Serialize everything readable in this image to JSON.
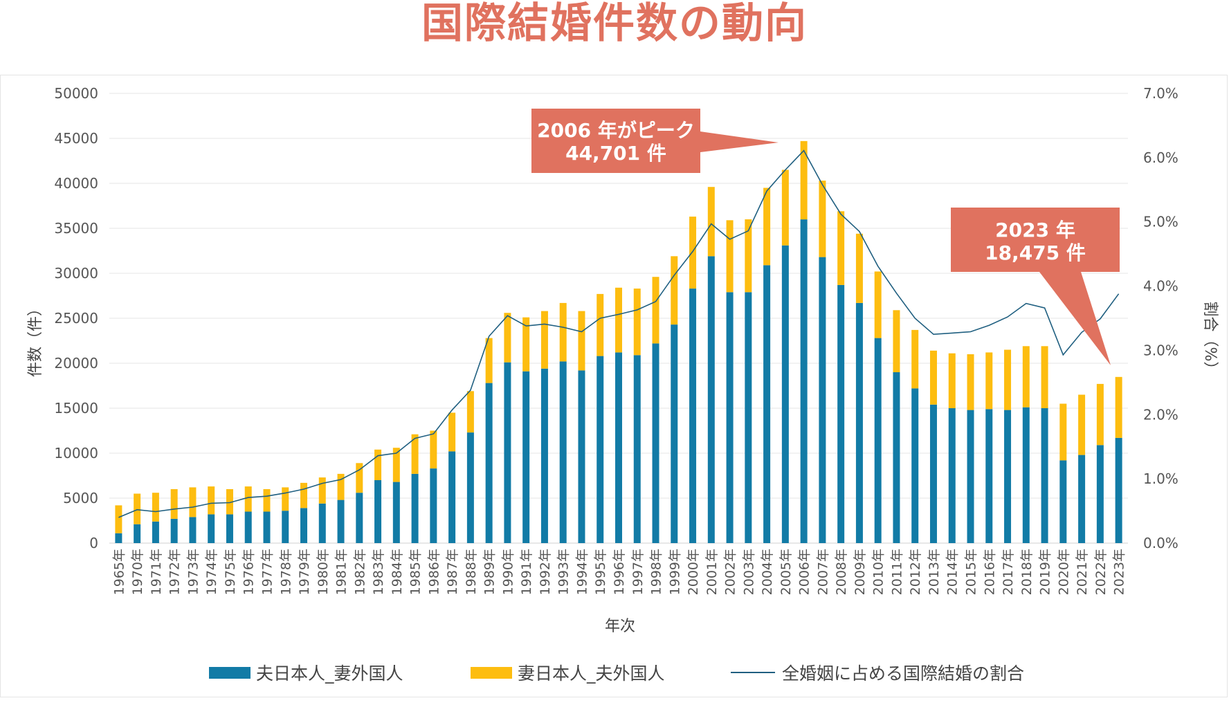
{
  "title": "国際結婚件数の動向",
  "chart_data": {
    "type": "bar",
    "stacked": true,
    "categories": [
      "1965年",
      "1970年",
      "1971年",
      "1972年",
      "1973年",
      "1974年",
      "1975年",
      "1976年",
      "1977年",
      "1978年",
      "1979年",
      "1980年",
      "1981年",
      "1982年",
      "1983年",
      "1984年",
      "1985年",
      "1986年",
      "1987年",
      "1988年",
      "1989年",
      "1990年",
      "1991年",
      "1992年",
      "1993年",
      "1994年",
      "1995年",
      "1996年",
      "1997年",
      "1998年",
      "1999年",
      "2000年",
      "2001年",
      "2002年",
      "2003年",
      "2004年",
      "2005年",
      "2006年",
      "2007年",
      "2008年",
      "2009年",
      "2010年",
      "2011年",
      "2012年",
      "2013年",
      "2014年",
      "2015年",
      "2016年",
      "2017年",
      "2018年",
      "2019年",
      "2020年",
      "2021年",
      "2022年",
      "2023年"
    ],
    "series": [
      {
        "name": "夫日本人_妻外国人",
        "type": "bar",
        "axis": "left",
        "color": "#127ba6",
        "values": [
          1100,
          2100,
          2400,
          2700,
          2900,
          3200,
          3200,
          3500,
          3500,
          3600,
          3900,
          4400,
          4800,
          5600,
          7000,
          6800,
          7700,
          8300,
          10200,
          12300,
          17800,
          20100,
          19100,
          19400,
          20200,
          19200,
          20800,
          21200,
          20900,
          22200,
          24300,
          28300,
          31900,
          27900,
          27900,
          30900,
          33100,
          35993,
          31800,
          28700,
          26700,
          22800,
          19000,
          17200,
          15400,
          15000,
          14800,
          14900,
          14800,
          15100,
          15000,
          9200,
          9800,
          10900,
          11700
        ]
      },
      {
        "name": "妻日本人_夫外国人",
        "type": "bar",
        "axis": "left",
        "color": "#fdbd10",
        "values": [
          3100,
          3400,
          3200,
          3300,
          3300,
          3100,
          2800,
          2800,
          2500,
          2600,
          2800,
          2900,
          2900,
          3300,
          3400,
          3800,
          4400,
          4200,
          4300,
          4600,
          5000,
          5500,
          6000,
          6400,
          6500,
          6600,
          6900,
          7200,
          7400,
          7400,
          7600,
          8000,
          7700,
          8000,
          8100,
          8600,
          8400,
          8708,
          8500,
          8200,
          7700,
          7400,
          6900,
          6500,
          6000,
          6100,
          6200,
          6300,
          6700,
          6800,
          6900,
          6300,
          6700,
          6800,
          6775
        ]
      },
      {
        "name": "全婚姻に占める国際結婚の割合",
        "type": "line",
        "axis": "right",
        "color": "#1f5f80",
        "values": [
          0.4,
          0.52,
          0.49,
          0.53,
          0.56,
          0.62,
          0.63,
          0.71,
          0.73,
          0.78,
          0.84,
          0.93,
          0.99,
          1.14,
          1.36,
          1.4,
          1.63,
          1.7,
          2.07,
          2.38,
          3.22,
          3.54,
          3.38,
          3.41,
          3.36,
          3.29,
          3.5,
          3.56,
          3.63,
          3.76,
          4.17,
          4.54,
          4.97,
          4.73,
          4.86,
          5.48,
          5.81,
          6.11,
          5.58,
          5.12,
          4.85,
          4.31,
          3.89,
          3.5,
          3.25,
          3.27,
          3.29,
          3.39,
          3.52,
          3.73,
          3.66,
          2.93,
          3.28,
          3.49,
          3.88
        ]
      }
    ],
    "ylim_left": [
      0,
      50000
    ],
    "yticks_left": [
      "0",
      "5000",
      "10000",
      "15000",
      "20000",
      "25000",
      "30000",
      "35000",
      "40000",
      "45000",
      "50000"
    ],
    "ylim_right": [
      0,
      7
    ],
    "yticks_right": [
      "0.0%",
      "1.0%",
      "2.0%",
      "3.0%",
      "4.0%",
      "5.0%",
      "6.0%",
      "7.0%"
    ],
    "ylabel_left": "件数（件）",
    "ylabel_right": "割合（%）",
    "xlabel": "年次",
    "grid": true,
    "legend_position": "bottom",
    "annotations": [
      {
        "lines": [
          "2006 年がピーク",
          "44,701 件"
        ],
        "color": "#e0725f",
        "points_to": "2006年"
      },
      {
        "lines": [
          "2023 年",
          "18,475 件"
        ],
        "color": "#e0725f",
        "points_to": "2023年"
      }
    ]
  }
}
